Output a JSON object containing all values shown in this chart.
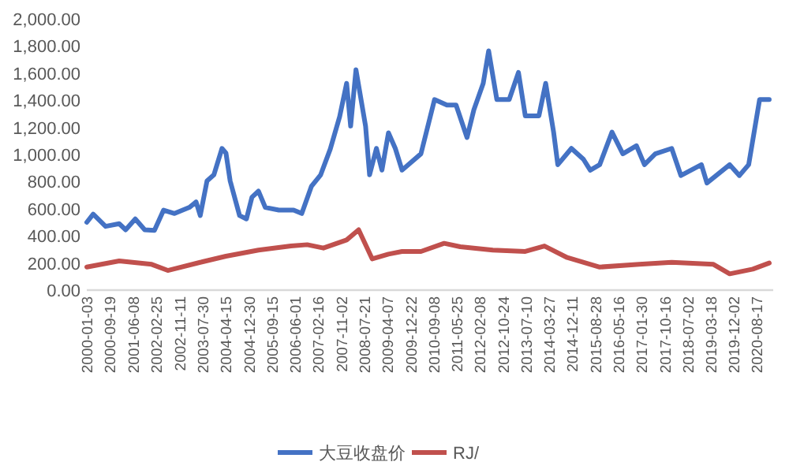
{
  "chart_data": {
    "type": "line",
    "x": [
      "2000-01-03",
      "2000-03-15",
      "2000-08-01",
      "2001-01-01",
      "2001-03-15",
      "2001-07-01",
      "2001-10-15",
      "2002-02-01",
      "2002-05-15",
      "2002-09-15",
      "2003-03-01",
      "2003-05-15",
      "2003-07-01",
      "2003-09-15",
      "2003-12-01",
      "2004-03-01",
      "2004-04-15",
      "2004-06-01",
      "2004-09-15",
      "2004-12-01",
      "2005-02-01",
      "2005-04-15",
      "2005-07-01",
      "2005-12-01",
      "2006-05-15",
      "2006-08-15",
      "2006-12-01",
      "2007-03-15",
      "2007-07-01",
      "2007-10-15",
      "2008-01-01",
      "2008-02-15",
      "2008-04-15",
      "2008-08-01",
      "2008-09-15",
      "2008-12-01",
      "2009-02-01",
      "2009-04-15",
      "2009-07-01",
      "2009-09-15",
      "2010-04-15",
      "2010-09-15",
      "2011-02-01",
      "2011-05-15",
      "2011-09-15",
      "2011-12-01",
      "2012-03-15",
      "2012-05-15",
      "2012-08-15",
      "2013-01-01",
      "2013-04-15",
      "2013-07-01",
      "2013-12-01",
      "2014-02-15",
      "2014-05-15",
      "2014-07-01",
      "2014-12-01",
      "2015-04-15",
      "2015-07-01",
      "2015-10-15",
      "2016-03-01",
      "2016-07-01",
      "2016-12-01",
      "2017-03-01",
      "2017-07-01",
      "2018-01-01",
      "2018-04-15",
      "2018-12-01",
      "2019-02-01",
      "2019-10-15",
      "2020-02-01",
      "2020-05-15",
      "2020-09-15",
      "2021-01-01"
    ],
    "series": [
      {
        "name": "大豆收盘价",
        "color": "#4472c4",
        "values": [
          500,
          560,
          470,
          490,
          445,
          525,
          445,
          440,
          590,
          565,
          610,
          650,
          550,
          805,
          850,
          1045,
          1010,
          805,
          550,
          525,
          685,
          730,
          610,
          590,
          590,
          565,
          765,
          850,
          1040,
          1280,
          1525,
          1210,
          1625,
          1210,
          850,
          1045,
          885,
          1160,
          1045,
          885,
          1005,
          1405,
          1365,
          1365,
          1125,
          1330,
          1525,
          1765,
          1405,
          1405,
          1605,
          1285,
          1285,
          1525,
          1165,
          925,
          1045,
          965,
          885,
          925,
          1165,
          1005,
          1065,
          925,
          1005,
          1045,
          845,
          925,
          790,
          925,
          845,
          925,
          1405,
          1405
        ]
      },
      {
        "name": "RJ/",
        "color": "#c0504d",
        "x": [
          "2000-01-03",
          "2001-01-01",
          "2002-01-01",
          "2002-07-01",
          "2003-07-01",
          "2004-04-15",
          "2005-04-15",
          "2006-04-15",
          "2006-10-15",
          "2007-04-15",
          "2008-01-01",
          "2008-05-15",
          "2008-10-15",
          "2009-04-15",
          "2009-09-15",
          "2010-04-15",
          "2011-01-01",
          "2011-07-01",
          "2012-07-01",
          "2013-07-01",
          "2014-02-01",
          "2014-10-15",
          "2015-10-15",
          "2017-01-01",
          "2018-01-01",
          "2019-04-15",
          "2019-10-15",
          "2020-07-01",
          "2021-01-01"
        ],
        "values": [
          170,
          215,
          190,
          145,
          205,
          250,
          295,
          325,
          335,
          310,
          370,
          445,
          230,
          265,
          285,
          285,
          345,
          320,
          295,
          285,
          325,
          240,
          170,
          190,
          205,
          190,
          120,
          155,
          200
        ]
      }
    ],
    "xlim": [
      "2000-01-03",
      "2021-02-15"
    ],
    "xticks": [
      {
        "value": "2000-01-03",
        "label": "2000-01-03"
      },
      {
        "value": "2000-09-19",
        "label": "2000-09-19"
      },
      {
        "value": "2001-06-08",
        "label": "2001-06-08"
      },
      {
        "value": "2002-02-25",
        "label": "2002-02-25"
      },
      {
        "value": "2002-11-11",
        "label": "2002-11-11"
      },
      {
        "value": "2003-07-30",
        "label": "2003-07-30"
      },
      {
        "value": "2004-04-15",
        "label": "2004-04-15"
      },
      {
        "value": "2004-12-30",
        "label": "2004-12-30"
      },
      {
        "value": "2005-09-15",
        "label": "2005-09-15"
      },
      {
        "value": "2006-06-01",
        "label": "2006-06-01"
      },
      {
        "value": "2007-02-16",
        "label": "2007-02-16"
      },
      {
        "value": "2007-11-02",
        "label": "2007-11-02"
      },
      {
        "value": "2008-07-21",
        "label": "2008-07-21"
      },
      {
        "value": "2009-04-07",
        "label": "2009-04-07"
      },
      {
        "value": "2009-12-22",
        "label": "2009-12-22"
      },
      {
        "value": "2010-09-08",
        "label": "2010-09-08"
      },
      {
        "value": "2011-05-25",
        "label": "2011-05-25"
      },
      {
        "value": "2012-02-08",
        "label": "2012-02-08"
      },
      {
        "value": "2012-10-24",
        "label": "2012-10-24"
      },
      {
        "value": "2013-07-10",
        "label": "2013-07-10"
      },
      {
        "value": "2014-03-27",
        "label": "2014-03-27"
      },
      {
        "value": "2014-12-11",
        "label": "2014-12-11"
      },
      {
        "value": "2015-08-28",
        "label": "2015-08-28"
      },
      {
        "value": "2016-05-16",
        "label": "2016-05-16"
      },
      {
        "value": "2017-01-30",
        "label": "2017-01-30"
      },
      {
        "value": "2017-10-16",
        "label": "2017-10-16"
      },
      {
        "value": "2018-07-02",
        "label": "2018-07-02"
      },
      {
        "value": "2019-03-18",
        "label": "2019-03-18"
      },
      {
        "value": "2019-12-02",
        "label": "2019-12-02"
      },
      {
        "value": "2020-08-17",
        "label": "2020-08-17"
      }
    ],
    "ylim": [
      0,
      2000
    ],
    "yticks": [
      {
        "value": 0,
        "label": "0.00"
      },
      {
        "value": 200,
        "label": "200.00"
      },
      {
        "value": 400,
        "label": "400.00"
      },
      {
        "value": 600,
        "label": "600.00"
      },
      {
        "value": 800,
        "label": "800.00"
      },
      {
        "value": 1000,
        "label": "1,000.00"
      },
      {
        "value": 1200,
        "label": "1,200.00"
      },
      {
        "value": 1400,
        "label": "1,400.00"
      },
      {
        "value": 1600,
        "label": "1,600.00"
      },
      {
        "value": 1800,
        "label": "1,800.00"
      },
      {
        "value": 2000,
        "label": "2,000.00"
      }
    ],
    "grid": false,
    "legend": "bottom",
    "marker": "none",
    "line_style": "solid"
  }
}
